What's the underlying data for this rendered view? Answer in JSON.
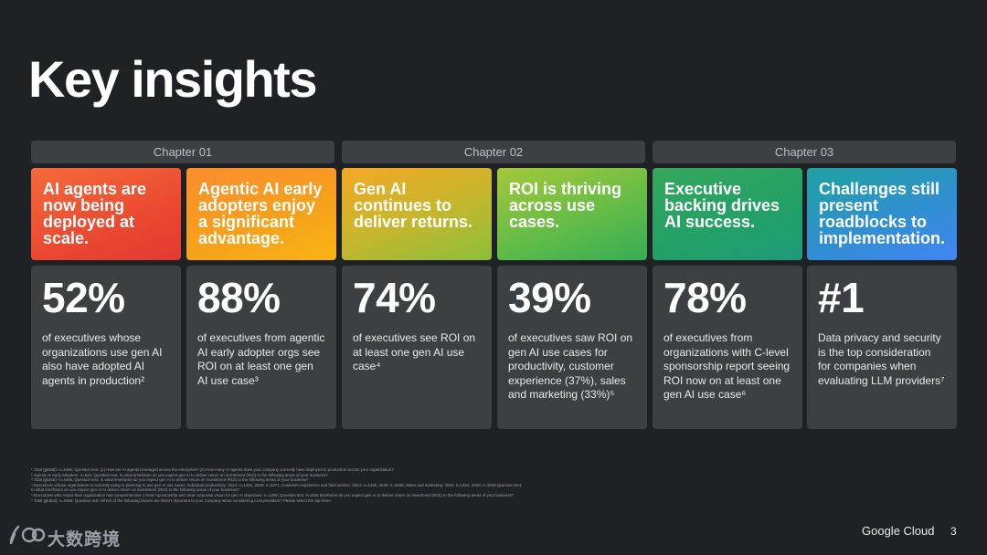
{
  "title": "Key insights",
  "chapters": [
    "Chapter 01",
    "Chapter 02",
    "Chapter 03"
  ],
  "insights": [
    {
      "heading": "AI agents are now being deployed at scale.",
      "stat": "52%",
      "description": "of executives whose organizations use gen AI also have adopted AI agents in production²"
    },
    {
      "heading": "Agentic AI early adopters enjoy a significant advantage.",
      "stat": "88%",
      "description": "of executives from agentic AI early adopter orgs see ROI on at least one gen AI use case³"
    },
    {
      "heading": "Gen AI continues to deliver returns.",
      "stat": "74%",
      "description": "of executives see ROI on at least one gen AI use case⁴"
    },
    {
      "heading": "ROI is thriving across use cases.",
      "stat": "39%",
      "description": "of executives saw ROI on gen AI use cases for productivity, customer experience (37%), sales and marketing (33%)⁵"
    },
    {
      "heading": "Executive backing drives AI success.",
      "stat": "78%",
      "description": "of executives from organizations with C-level sponsorship report seeing ROI now on at least one gen AI use case⁶"
    },
    {
      "heading": "Challenges still present roadblocks to implementation.",
      "stat": "#1",
      "description": "Data privacy and security is the top consideration for companies when evaluating LLM providers⁷"
    }
  ],
  "footnotes": [
    "¹ Total (global): n=3466; Question text: (1) How are AI agents leveraged across the enterprise? (2) How many AI agents does your company currently have deployed in production across your organization?",
    "² Agentic AI early adopters: n=640; Question text: In what timeframe do you expect gen AI to deliver return on investment (ROI) to the following areas of your business?",
    "³ Total (global): n=3466; Question text: In what timeframe do you expect gen AI to deliver return on investment (ROI) to the following areas of your business?",
    "⁴ Executives whose organization is currently using or planning to use gen AI use cases: Individual productivity: 2024: n=1451, 2025: n=3271; Customer experience and field service: 2024: n=1445, 2025: n=3285; Sales and marketing: 2024: n=1454, 2025: n=3245 Question text:",
    "In what timeframe do you expect gen AI to deliver return on investment (ROI) to the following areas of your business?",
    "⁵ Executives who report their organization has comprehensive C-level sponsorship and clear corporate vision for gen AI objectives: n=1269; Question text: In what timeframe do you expect gen AI to deliver return on investment (ROI) to the following areas of your business?",
    "⁶ Total (global): n=3466; Question text: Which of the following factors are MOST important to your company when considering LLM providers? Please select the top three."
  ],
  "watermark": "大数跨境",
  "brand": "Google Cloud",
  "page_number": "3"
}
